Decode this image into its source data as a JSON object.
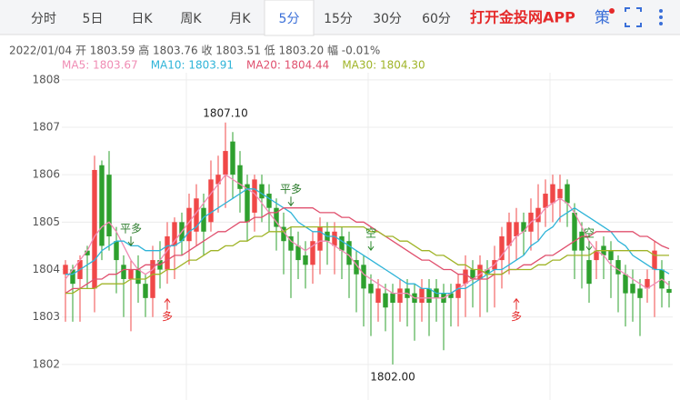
{
  "tabs": [
    "分时",
    "5日",
    "日K",
    "周K",
    "月K",
    "5分",
    "15分",
    "30分",
    "60分"
  ],
  "active_tab": 5,
  "app_link": "打开金投网APP",
  "strategy_icon": "策",
  "quote_line": "2022/01/04  开 1803.59  高 1803.76  收 1803.51  低 1803.20  幅 -0.01%",
  "chart_data": {
    "type": "candlestick",
    "up_color": "#f04848",
    "down_color": "#2ea02e",
    "ylim": [
      1801.25,
      1808.15
    ],
    "yticks": [
      1802,
      1803,
      1804,
      1805,
      1806,
      1807,
      1808
    ],
    "grid": true,
    "candles": [
      [
        1803.9,
        1804.2,
        1802.9,
        1804.1
      ],
      [
        1804.0,
        1804.1,
        1802.9,
        1803.7
      ],
      [
        1803.8,
        1804.3,
        1802.9,
        1804.2
      ],
      [
        1804.4,
        1804.5,
        1803.6,
        1804.3
      ],
      [
        1803.6,
        1806.4,
        1803.1,
        1806.1
      ],
      [
        1806.2,
        1806.3,
        1804.2,
        1804.5
      ],
      [
        1806.0,
        1806.5,
        1804.4,
        1804.7
      ],
      [
        1804.6,
        1804.9,
        1803.5,
        1804.2
      ],
      [
        1804.1,
        1804.3,
        1803.0,
        1803.8
      ],
      [
        1803.8,
        1804.2,
        1802.7,
        1804.0
      ],
      [
        1804.0,
        1804.3,
        1803.3,
        1803.7
      ],
      [
        1803.7,
        1803.9,
        1803.0,
        1803.4
      ],
      [
        1803.4,
        1804.5,
        1803.0,
        1804.2
      ],
      [
        1804.2,
        1804.6,
        1803.6,
        1804.0
      ],
      [
        1804.0,
        1805.0,
        1803.7,
        1804.7
      ],
      [
        1804.5,
        1805.1,
        1803.8,
        1805.0
      ],
      [
        1805.0,
        1805.2,
        1804.3,
        1804.6
      ],
      [
        1804.6,
        1805.6,
        1804.1,
        1805.3
      ],
      [
        1804.8,
        1805.8,
        1804.5,
        1805.5
      ],
      [
        1805.3,
        1805.6,
        1804.3,
        1804.8
      ],
      [
        1805.0,
        1806.3,
        1804.8,
        1805.9
      ],
      [
        1805.8,
        1806.4,
        1805.2,
        1806.0
      ],
      [
        1806.0,
        1807.1,
        1805.3,
        1806.5
      ],
      [
        1806.7,
        1806.9,
        1805.5,
        1806.0
      ],
      [
        1806.2,
        1806.5,
        1805.2,
        1805.7
      ],
      [
        1805.8,
        1806.0,
        1804.6,
        1805.0
      ],
      [
        1805.2,
        1806.0,
        1804.8,
        1805.9
      ],
      [
        1805.8,
        1806.0,
        1805.0,
        1805.5
      ],
      [
        1805.6,
        1805.8,
        1804.8,
        1805.3
      ],
      [
        1805.3,
        1805.5,
        1804.4,
        1804.9
      ],
      [
        1804.9,
        1805.2,
        1803.9,
        1804.6
      ],
      [
        1804.7,
        1804.9,
        1803.4,
        1804.4
      ],
      [
        1804.5,
        1804.8,
        1803.8,
        1804.2
      ],
      [
        1804.3,
        1804.6,
        1803.6,
        1804.1
      ],
      [
        1804.1,
        1804.8,
        1803.7,
        1804.6
      ],
      [
        1804.4,
        1805.1,
        1803.9,
        1804.9
      ],
      [
        1804.8,
        1805.0,
        1804.1,
        1804.6
      ],
      [
        1804.5,
        1805.0,
        1803.9,
        1804.8
      ],
      [
        1804.7,
        1804.9,
        1803.8,
        1804.4
      ],
      [
        1804.6,
        1804.8,
        1803.4,
        1804.1
      ],
      [
        1804.2,
        1804.4,
        1803.1,
        1803.9
      ],
      [
        1804.1,
        1804.3,
        1802.8,
        1803.6
      ],
      [
        1803.7,
        1803.9,
        1802.6,
        1803.5
      ],
      [
        1803.3,
        1803.8,
        1802.9,
        1803.6
      ],
      [
        1803.5,
        1803.7,
        1802.7,
        1803.2
      ],
      [
        1803.5,
        1803.7,
        1802.0,
        1803.3
      ],
      [
        1803.3,
        1803.8,
        1802.9,
        1803.6
      ],
      [
        1803.6,
        1803.8,
        1802.8,
        1803.4
      ],
      [
        1803.5,
        1803.7,
        1802.5,
        1803.3
      ],
      [
        1803.3,
        1803.8,
        1802.9,
        1803.6
      ],
      [
        1803.6,
        1803.8,
        1802.6,
        1803.3
      ],
      [
        1803.6,
        1803.8,
        1802.9,
        1803.4
      ],
      [
        1803.5,
        1803.7,
        1802.3,
        1803.3
      ],
      [
        1803.5,
        1803.7,
        1802.8,
        1803.4
      ],
      [
        1803.4,
        1803.9,
        1802.8,
        1803.7
      ],
      [
        1803.7,
        1804.3,
        1803.0,
        1804.0
      ],
      [
        1804.0,
        1804.2,
        1803.2,
        1803.8
      ],
      [
        1803.8,
        1804.3,
        1803.0,
        1804.1
      ],
      [
        1804.0,
        1804.2,
        1803.1,
        1803.9
      ],
      [
        1804.0,
        1804.5,
        1803.2,
        1804.2
      ],
      [
        1804.2,
        1804.9,
        1803.6,
        1804.7
      ],
      [
        1804.5,
        1805.2,
        1803.9,
        1805.0
      ],
      [
        1804.7,
        1805.3,
        1804.2,
        1805.0
      ],
      [
        1805.0,
        1805.2,
        1804.3,
        1804.8
      ],
      [
        1804.8,
        1805.5,
        1804.4,
        1805.2
      ],
      [
        1805.0,
        1805.8,
        1804.6,
        1805.3
      ],
      [
        1805.3,
        1805.9,
        1804.9,
        1805.6
      ],
      [
        1805.4,
        1806.0,
        1805.0,
        1805.8
      ],
      [
        1805.5,
        1806.0,
        1805.0,
        1805.7
      ],
      [
        1805.8,
        1805.9,
        1804.9,
        1805.4
      ],
      [
        1805.2,
        1805.4,
        1803.8,
        1804.4
      ],
      [
        1804.8,
        1805.0,
        1803.6,
        1804.4
      ],
      [
        1804.2,
        1804.4,
        1803.3,
        1803.7
      ],
      [
        1804.2,
        1804.6,
        1803.8,
        1804.4
      ],
      [
        1804.5,
        1804.7,
        1803.8,
        1804.3
      ],
      [
        1804.4,
        1804.6,
        1803.4,
        1804.2
      ],
      [
        1804.2,
        1804.3,
        1803.1,
        1803.9
      ],
      [
        1803.9,
        1804.1,
        1802.8,
        1803.5
      ],
      [
        1803.7,
        1804.0,
        1802.9,
        1803.5
      ],
      [
        1803.6,
        1803.8,
        1802.6,
        1803.4
      ],
      [
        1803.6,
        1804.0,
        1803.3,
        1803.8
      ],
      [
        1804.0,
        1804.6,
        1803.0,
        1804.4
      ],
      [
        1804.0,
        1804.2,
        1803.2,
        1803.6
      ],
      [
        1803.59,
        1803.76,
        1803.2,
        1803.51
      ]
    ],
    "series": [
      {
        "name": "MA5: 1803.67",
        "color": "#f08cb4",
        "values": [
          1803.8,
          1804.0,
          1804.2,
          1804.4,
          1804.7,
          1804.9,
          1805.0,
          1804.8,
          1804.5,
          1804.2,
          1804.0,
          1803.9,
          1804.0,
          1804.2,
          1804.4,
          1804.6,
          1804.8,
          1805.0,
          1805.2,
          1805.4,
          1805.6,
          1805.8,
          1806.0,
          1805.9,
          1805.8,
          1805.7,
          1805.6,
          1805.4,
          1805.2,
          1805.0,
          1804.8,
          1804.6,
          1804.5,
          1804.4,
          1804.5,
          1804.6,
          1804.6,
          1804.5,
          1804.4,
          1804.3,
          1804.1,
          1803.9,
          1803.8,
          1803.7,
          1803.6,
          1803.5,
          1803.5,
          1803.5,
          1803.4,
          1803.4,
          1803.4,
          1803.4,
          1803.4,
          1803.5,
          1803.6,
          1803.7,
          1803.8,
          1803.9,
          1804.0,
          1804.1,
          1804.3,
          1804.5,
          1804.7,
          1804.8,
          1805.0,
          1805.1,
          1805.3,
          1805.4,
          1805.5,
          1805.4,
          1805.2,
          1804.9,
          1804.6,
          1804.4,
          1804.3,
          1804.1,
          1804.0,
          1803.9,
          1803.8,
          1803.7,
          1803.6,
          1803.7,
          1803.8,
          1803.67
        ]
      },
      {
        "name": "MA10: 1803.91",
        "color": "#2fb4d8",
        "values": [
          1803.9,
          1803.9,
          1804.0,
          1804.1,
          1804.2,
          1804.4,
          1804.5,
          1804.6,
          1804.6,
          1804.5,
          1804.5,
          1804.4,
          1804.4,
          1804.4,
          1804.5,
          1804.5,
          1804.6,
          1804.8,
          1804.9,
          1805.1,
          1805.2,
          1805.3,
          1805.4,
          1805.5,
          1805.6,
          1805.7,
          1805.7,
          1805.6,
          1805.5,
          1805.4,
          1805.3,
          1805.2,
          1805.0,
          1804.9,
          1804.8,
          1804.8,
          1804.7,
          1804.7,
          1804.6,
          1804.5,
          1804.4,
          1804.3,
          1804.2,
          1804.1,
          1804.0,
          1803.9,
          1803.8,
          1803.7,
          1803.7,
          1803.6,
          1803.6,
          1803.5,
          1803.5,
          1803.5,
          1803.6,
          1803.6,
          1803.7,
          1803.8,
          1803.9,
          1804.0,
          1804.0,
          1804.1,
          1804.2,
          1804.3,
          1804.5,
          1804.6,
          1804.8,
          1804.9,
          1805.1,
          1805.2,
          1805.3,
          1805.2,
          1805.1,
          1805.0,
          1804.9,
          1804.8,
          1804.6,
          1804.5,
          1804.3,
          1804.2,
          1804.1,
          1804.0,
          1804.0,
          1803.91
        ]
      },
      {
        "name": "MA20: 1804.44",
        "color": "#e0506e",
        "values": [
          1803.5,
          1803.6,
          1803.6,
          1803.7,
          1803.8,
          1803.8,
          1803.9,
          1803.9,
          1804.0,
          1804.0,
          1804.0,
          1804.1,
          1804.1,
          1804.1,
          1804.2,
          1804.3,
          1804.3,
          1804.4,
          1804.5,
          1804.6,
          1804.7,
          1804.8,
          1804.8,
          1804.9,
          1805.0,
          1805.0,
          1805.1,
          1805.1,
          1805.2,
          1805.2,
          1805.3,
          1805.3,
          1805.3,
          1805.3,
          1805.3,
          1805.2,
          1805.2,
          1805.2,
          1805.1,
          1805.1,
          1805.0,
          1805.0,
          1804.9,
          1804.8,
          1804.7,
          1804.6,
          1804.5,
          1804.4,
          1804.3,
          1804.2,
          1804.2,
          1804.1,
          1804.0,
          1804.0,
          1803.9,
          1803.9,
          1803.8,
          1803.8,
          1803.8,
          1803.9,
          1803.9,
          1804.0,
          1804.0,
          1804.1,
          1804.1,
          1804.2,
          1804.3,
          1804.3,
          1804.4,
          1804.5,
          1804.6,
          1804.7,
          1804.7,
          1804.8,
          1804.8,
          1804.8,
          1804.8,
          1804.8,
          1804.8,
          1804.7,
          1804.7,
          1804.6,
          1804.5,
          1804.44
        ]
      },
      {
        "name": "MA30: 1804.30",
        "color": "#a0b428",
        "values": [
          1803.5,
          1803.5,
          1803.6,
          1803.6,
          1803.6,
          1803.7,
          1803.7,
          1803.7,
          1803.7,
          1803.8,
          1803.8,
          1803.8,
          1803.9,
          1803.9,
          1804.0,
          1804.0,
          1804.1,
          1804.2,
          1804.2,
          1804.3,
          1804.4,
          1804.4,
          1804.5,
          1804.5,
          1804.6,
          1804.6,
          1804.7,
          1804.7,
          1804.8,
          1804.8,
          1804.8,
          1804.9,
          1804.9,
          1804.9,
          1804.9,
          1804.9,
          1804.9,
          1804.9,
          1804.9,
          1804.9,
          1804.9,
          1804.9,
          1804.8,
          1804.8,
          1804.7,
          1804.7,
          1804.6,
          1804.6,
          1804.5,
          1804.4,
          1804.4,
          1804.3,
          1804.3,
          1804.2,
          1804.1,
          1804.1,
          1804.0,
          1804.0,
          1803.9,
          1803.9,
          1803.9,
          1804.0,
          1804.0,
          1804.0,
          1804.0,
          1804.1,
          1804.1,
          1804.2,
          1804.2,
          1804.3,
          1804.3,
          1804.3,
          1804.3,
          1804.4,
          1804.4,
          1804.4,
          1804.4,
          1804.4,
          1804.4,
          1804.4,
          1804.4,
          1804.3,
          1804.3,
          1804.3
        ]
      }
    ],
    "annotations": [
      "1807.10",
      "1802.00",
      "平多",
      "平多",
      "多",
      "多",
      "空",
      "空"
    ]
  }
}
